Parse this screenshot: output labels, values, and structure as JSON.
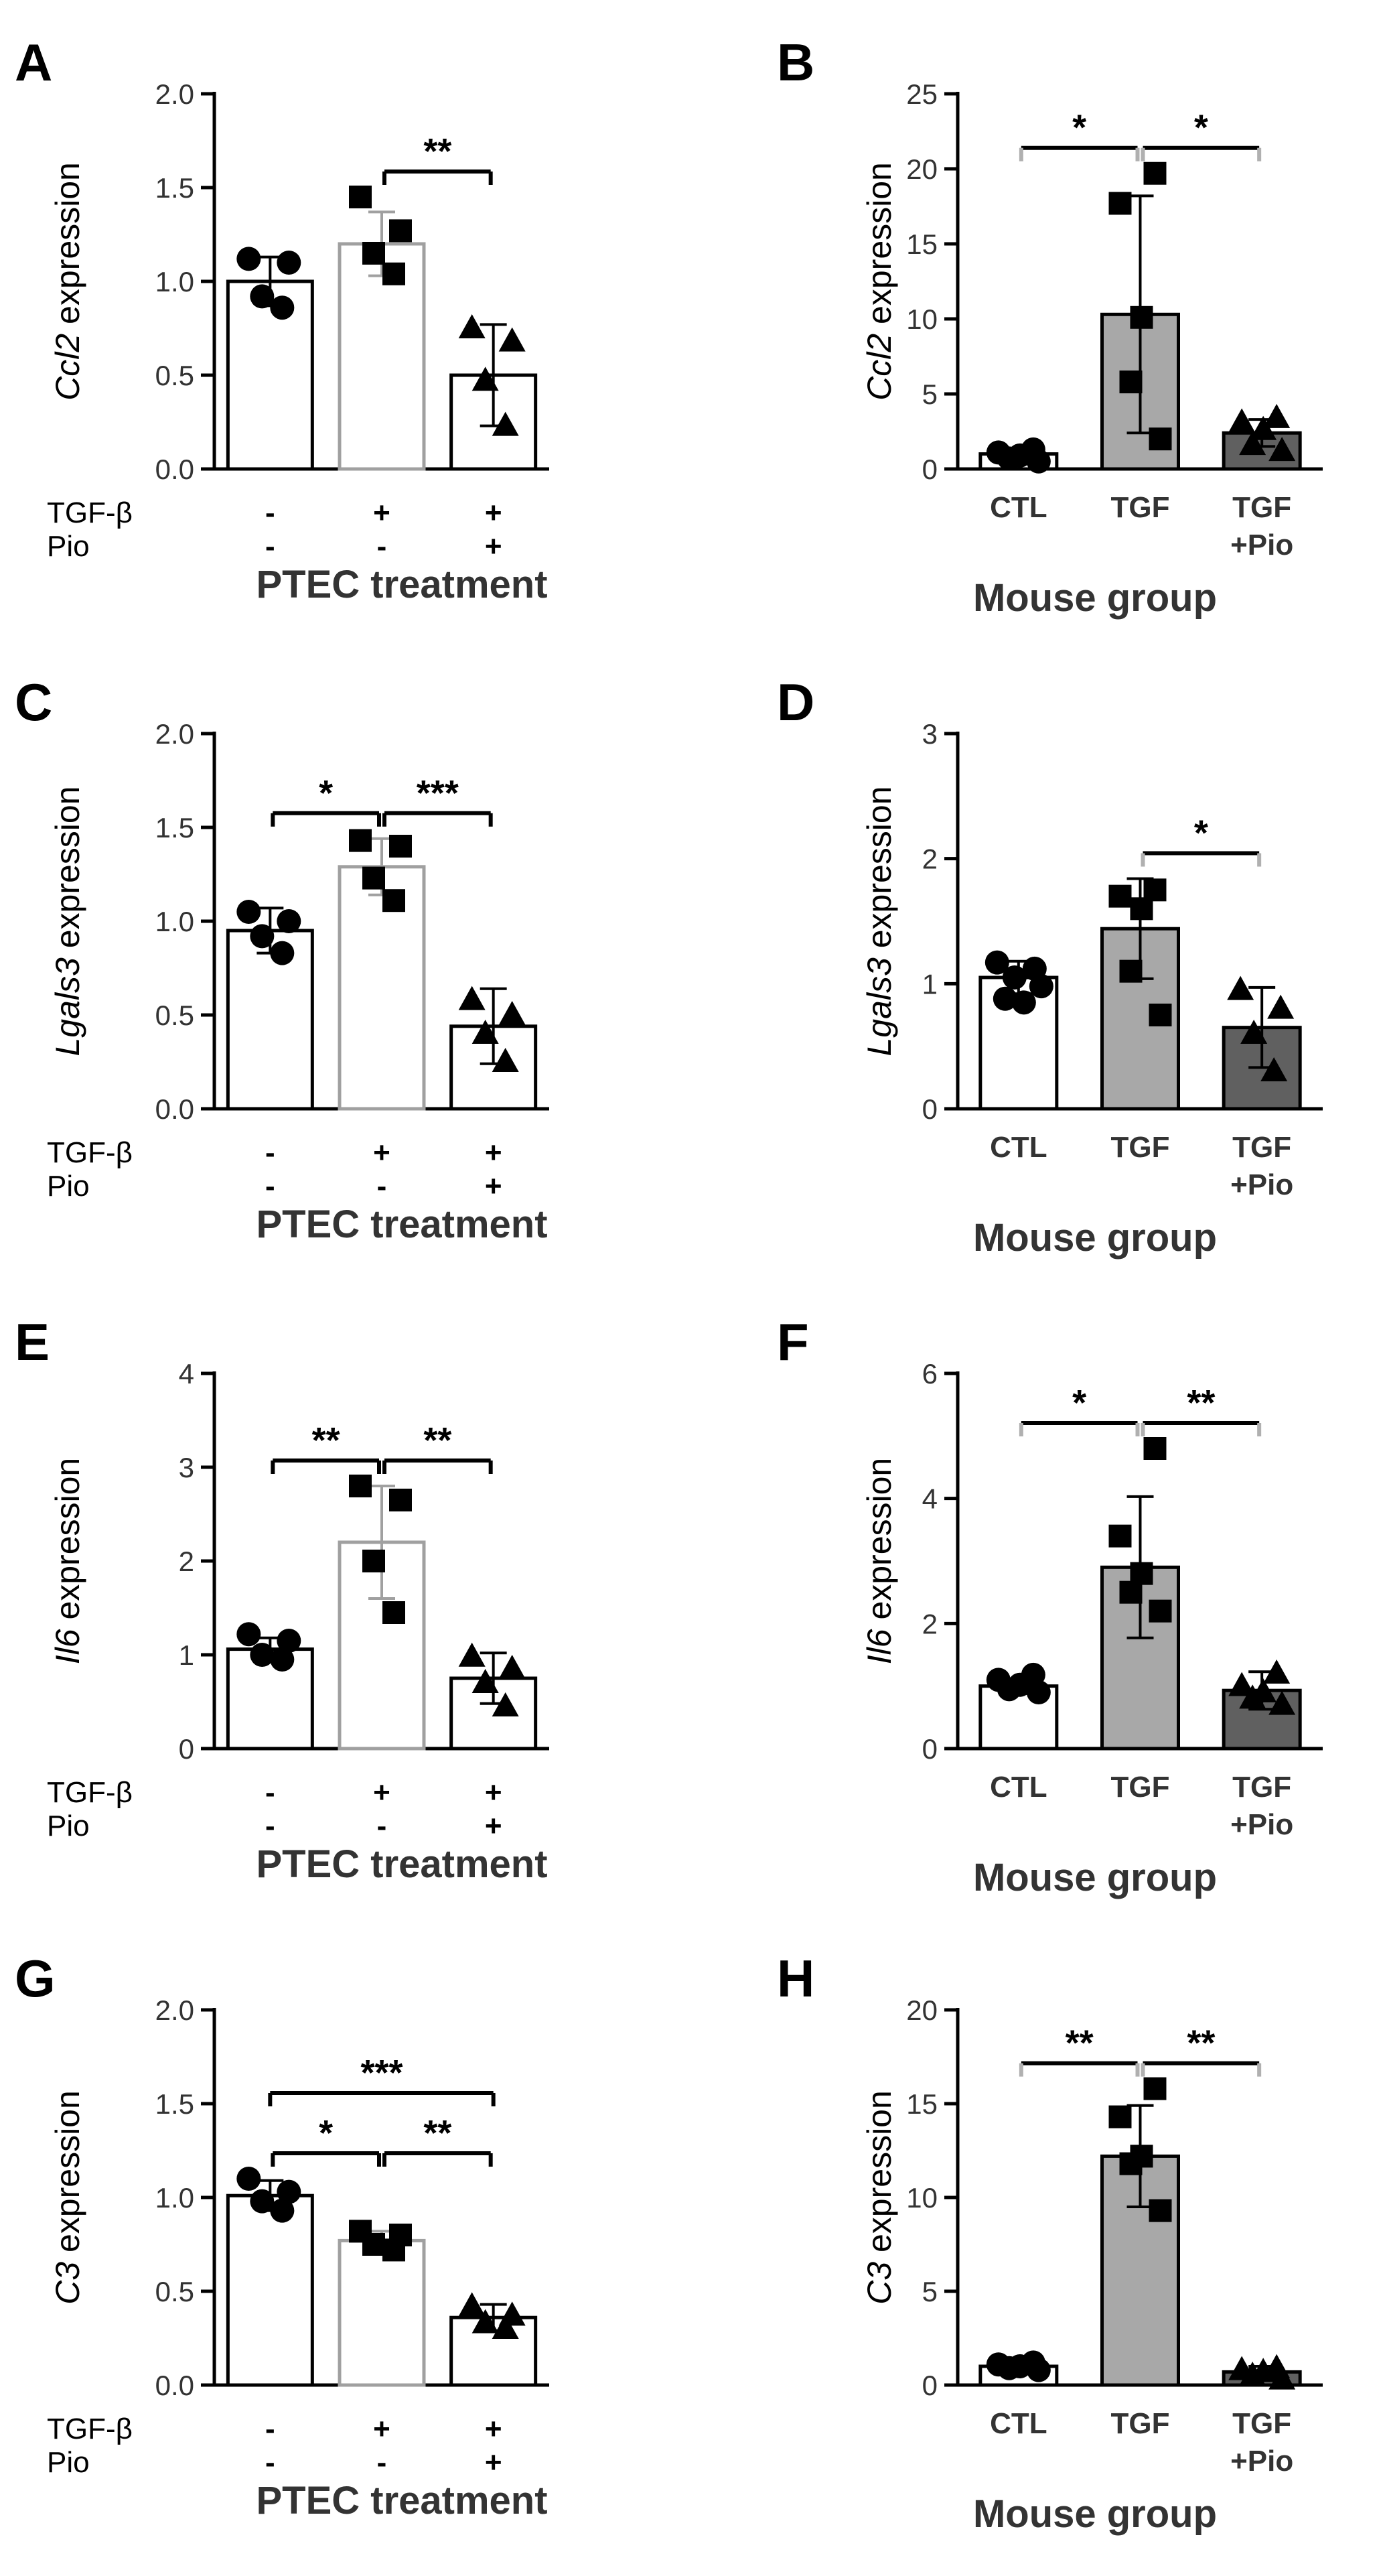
{
  "figure": {
    "ylabel_suffix": " expression",
    "left_xlabel": "PTEC treatment",
    "right_xlabel": "Mouse group",
    "row_labels": [
      "TGF-β",
      "Pio"
    ],
    "colors": {
      "ink": "#000000",
      "text": "#333333",
      "bar_white": "#ffffff",
      "bar_light": "#a8a8a8",
      "bar_dark": "#606060",
      "border_black": "#000000",
      "border_gray": "#a0a0a0"
    }
  },
  "chart_data": [
    {
      "panel": "A",
      "type": "bar",
      "side": "left",
      "gene": "Ccl2",
      "ylabel": "Ccl2 expression",
      "ylim": [
        0,
        2.0
      ],
      "yticks": [
        "0.0",
        "0.5",
        "1.0",
        "1.5",
        "2.0"
      ],
      "xlabel": "PTEC treatment",
      "treatments": {
        "TGF-β": [
          "-",
          "+",
          "+"
        ],
        "Pio": [
          "-",
          "-",
          "+"
        ]
      },
      "values": [
        1.0,
        1.2,
        0.5
      ],
      "err": [
        0.13,
        0.17,
        0.27
      ],
      "points": [
        [
          1.12,
          1.1,
          0.92,
          0.86
        ],
        [
          1.45,
          1.27,
          1.15,
          1.04
        ],
        [
          0.75,
          0.68,
          0.47,
          0.23
        ]
      ],
      "markers": [
        "circle",
        "square",
        "triangle"
      ],
      "significance": [
        {
          "from": 1,
          "to": 2,
          "label": "**",
          "level": 1
        }
      ]
    },
    {
      "panel": "B",
      "type": "bar",
      "side": "right",
      "gene": "Ccl2",
      "ylabel": "Ccl2 expression",
      "ylim": [
        0,
        25
      ],
      "yticks": [
        "0",
        "5",
        "10",
        "15",
        "20",
        "25"
      ],
      "xlabel": "Mouse group",
      "categories": [
        "CTL",
        "TGF",
        "TGF\n+Pio"
      ],
      "values": [
        1.0,
        10.3,
        2.4
      ],
      "err": [
        0.3,
        7.9,
        0.9
      ],
      "points": [
        [
          1.3,
          1.1,
          0.9,
          0.7,
          0.5
        ],
        [
          19.7,
          17.7,
          10.1,
          5.8,
          2.0
        ],
        [
          3.4,
          3.1,
          2.6,
          1.6,
          1.2
        ]
      ],
      "markers": [
        "circle",
        "square",
        "triangle"
      ],
      "significance": [
        {
          "from": 0,
          "to": 1,
          "label": "*",
          "level": 1
        },
        {
          "from": 1,
          "to": 2,
          "label": "*",
          "level": 1
        }
      ]
    },
    {
      "panel": "C",
      "type": "bar",
      "side": "left",
      "gene": "Lgals3",
      "ylabel": "Lgals3 expression",
      "ylim": [
        0,
        2.0
      ],
      "yticks": [
        "0.0",
        "0.5",
        "1.0",
        "1.5",
        "2.0"
      ],
      "xlabel": "PTEC treatment",
      "treatments": {
        "TGF-β": [
          "-",
          "+",
          "+"
        ],
        "Pio": [
          "-",
          "-",
          "+"
        ]
      },
      "values": [
        0.95,
        1.29,
        0.44
      ],
      "err": [
        0.12,
        0.15,
        0.2
      ],
      "points": [
        [
          1.05,
          1.0,
          0.92,
          0.83
        ],
        [
          1.43,
          1.4,
          1.23,
          1.11
        ],
        [
          0.58,
          0.5,
          0.4,
          0.25
        ]
      ],
      "markers": [
        "circle",
        "square",
        "triangle"
      ],
      "significance": [
        {
          "from": 0,
          "to": 1,
          "label": "*",
          "level": 1
        },
        {
          "from": 1,
          "to": 2,
          "label": "***",
          "level": 1
        }
      ]
    },
    {
      "panel": "D",
      "type": "bar",
      "side": "right",
      "gene": "Lgals3",
      "ylabel": "Lgals3 expression",
      "ylim": [
        0,
        3
      ],
      "yticks": [
        "0",
        "1",
        "2",
        "3"
      ],
      "xlabel": "Mouse group",
      "categories": [
        "CTL",
        "TGF",
        "TGF\n+Pio"
      ],
      "values": [
        1.05,
        1.44,
        0.65
      ],
      "err": [
        0.13,
        0.4,
        0.32
      ],
      "points": [
        [
          1.17,
          1.12,
          1.05,
          0.98,
          0.88,
          0.85
        ],
        [
          1.75,
          1.7,
          1.6,
          1.1,
          0.75
        ],
        [
          0.95,
          0.8,
          0.6,
          0.3
        ]
      ],
      "markers": [
        "circle",
        "square",
        "triangle"
      ],
      "significance": [
        {
          "from": 1,
          "to": 2,
          "label": "*",
          "level": 1
        }
      ]
    },
    {
      "panel": "E",
      "type": "bar",
      "side": "left",
      "gene": "Il6",
      "ylabel": "Il6 expression",
      "ylim": [
        0,
        4
      ],
      "yticks": [
        "0",
        "1",
        "2",
        "3",
        "4"
      ],
      "xlabel": "PTEC treatment",
      "treatments": {
        "TGF-β": [
          "-",
          "+",
          "+"
        ],
        "Pio": [
          "-",
          "-",
          "+"
        ]
      },
      "values": [
        1.06,
        2.2,
        0.75
      ],
      "err": [
        0.12,
        0.6,
        0.27
      ],
      "points": [
        [
          1.22,
          1.15,
          1.0,
          0.95
        ],
        [
          2.8,
          2.65,
          2.0,
          1.45
        ],
        [
          0.98,
          0.85,
          0.7,
          0.45
        ]
      ],
      "markers": [
        "circle",
        "square",
        "triangle"
      ],
      "significance": [
        {
          "from": 0,
          "to": 1,
          "label": "**",
          "level": 1
        },
        {
          "from": 1,
          "to": 2,
          "label": "**",
          "level": 1
        }
      ]
    },
    {
      "panel": "F",
      "type": "bar",
      "side": "right",
      "gene": "Il6",
      "ylabel": "Il6 expression",
      "ylim": [
        0,
        6
      ],
      "yticks": [
        "0",
        "2",
        "4",
        "6"
      ],
      "xlabel": "Mouse group",
      "categories": [
        "CTL",
        "TGF",
        "TGF\n+Pio"
      ],
      "values": [
        1.0,
        2.9,
        0.93
      ],
      "err": [
        0.12,
        1.13,
        0.3
      ],
      "points": [
        [
          1.18,
          1.1,
          1.02,
          0.95,
          0.9
        ],
        [
          4.8,
          3.4,
          2.8,
          2.5,
          2.2
        ],
        [
          1.2,
          1.0,
          0.9,
          0.8,
          0.7
        ]
      ],
      "markers": [
        "circle",
        "square",
        "triangle"
      ],
      "significance": [
        {
          "from": 0,
          "to": 1,
          "label": "*",
          "level": 1
        },
        {
          "from": 1,
          "to": 2,
          "label": "**",
          "level": 1
        }
      ]
    },
    {
      "panel": "G",
      "type": "bar",
      "side": "left",
      "gene": "C3",
      "ylabel": "C3 expression",
      "ylim": [
        0,
        2.0
      ],
      "yticks": [
        "0.0",
        "0.5",
        "1.0",
        "1.5",
        "2.0"
      ],
      "xlabel": "PTEC treatment",
      "treatments": {
        "TGF-β": [
          "-",
          "+",
          "+"
        ],
        "Pio": [
          "-",
          "-",
          "+"
        ]
      },
      "values": [
        1.01,
        0.77,
        0.36
      ],
      "err": [
        0.08,
        0.05,
        0.07
      ],
      "points": [
        [
          1.1,
          1.03,
          0.98,
          0.93
        ],
        [
          0.82,
          0.8,
          0.75,
          0.72
        ],
        [
          0.42,
          0.37,
          0.33,
          0.3
        ]
      ],
      "markers": [
        "circle",
        "square",
        "triangle"
      ],
      "significance": [
        {
          "from": 0,
          "to": 1,
          "label": "*",
          "level": 1
        },
        {
          "from": 1,
          "to": 2,
          "label": "**",
          "level": 1
        },
        {
          "from": 0,
          "to": 2,
          "label": "***",
          "level": 2
        }
      ]
    },
    {
      "panel": "H",
      "type": "bar",
      "side": "right",
      "gene": "C3",
      "ylabel": "C3 expression",
      "ylim": [
        0,
        20
      ],
      "yticks": [
        "0",
        "5",
        "10",
        "15",
        "20"
      ],
      "xlabel": "Mouse group",
      "categories": [
        "CTL",
        "TGF",
        "TGF\n+Pio"
      ],
      "values": [
        1.0,
        12.2,
        0.7
      ],
      "err": [
        0.2,
        2.7,
        0.3
      ],
      "points": [
        [
          1.2,
          1.1,
          1.0,
          0.9,
          0.8
        ],
        [
          15.8,
          14.3,
          12.2,
          11.8,
          9.3
        ],
        [
          0.9,
          0.8,
          0.7,
          0.5,
          0.3
        ]
      ],
      "markers": [
        "circle",
        "square",
        "triangle"
      ],
      "significance": [
        {
          "from": 0,
          "to": 1,
          "label": "**",
          "level": 1
        },
        {
          "from": 1,
          "to": 2,
          "label": "**",
          "level": 1
        }
      ]
    }
  ]
}
